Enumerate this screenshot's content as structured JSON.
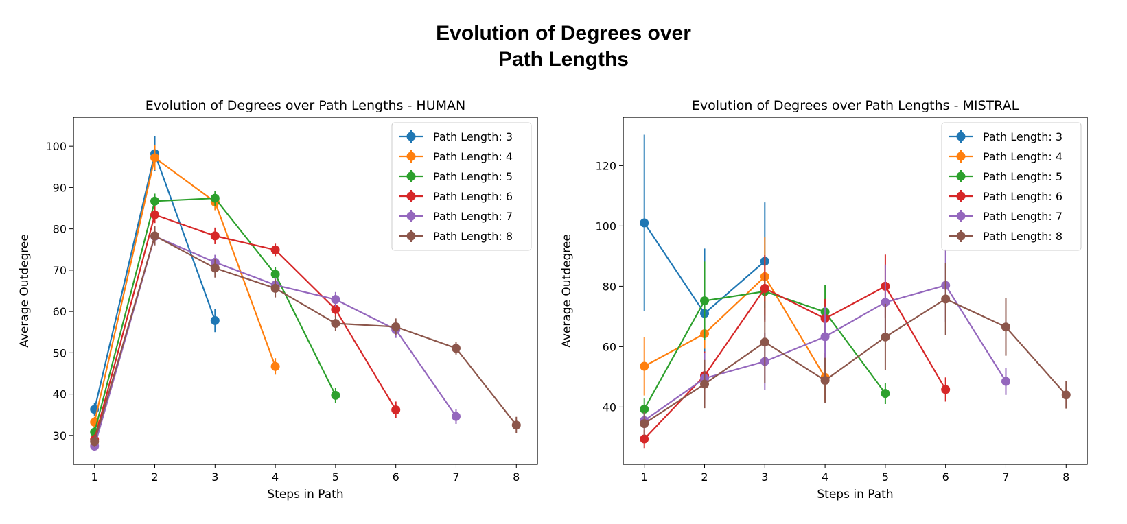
{
  "figure": {
    "title_line1": "Evolution of Degrees over",
    "title_line2": "Path Lengths"
  },
  "colors": [
    "#1f77b4",
    "#ff7f0e",
    "#2ca02c",
    "#d62728",
    "#9467bd",
    "#8c564b"
  ],
  "chart_data": [
    {
      "type": "line",
      "title": "Evolution of Degrees over Path Lengths - HUMAN",
      "xlabel": "Steps in Path",
      "ylabel": "Average Outdegree",
      "xlim": [
        0.65,
        8.35
      ],
      "ylim": [
        23,
        107
      ],
      "xticks": [
        1,
        2,
        3,
        4,
        5,
        6,
        7,
        8
      ],
      "yticks": [
        30,
        40,
        50,
        60,
        70,
        80,
        90,
        100
      ],
      "legend": "top-right",
      "grid": false,
      "series": [
        {
          "name": "Path Length: 3",
          "x": [
            1,
            2,
            3
          ],
          "y": [
            36.3,
            98.2,
            57.8
          ],
          "err": [
            1.5,
            4.2,
            2.8
          ]
        },
        {
          "name": "Path Length: 4",
          "x": [
            1,
            2,
            3,
            4
          ],
          "y": [
            33.2,
            97.2,
            86.5,
            46.7
          ],
          "err": [
            1.3,
            3.0,
            2.0,
            2.0
          ]
        },
        {
          "name": "Path Length: 5",
          "x": [
            1,
            2,
            3,
            4,
            5
          ],
          "y": [
            30.8,
            86.7,
            87.4,
            69.0,
            39.7
          ],
          "err": [
            1.2,
            1.8,
            1.8,
            1.8,
            1.8
          ]
        },
        {
          "name": "Path Length: 6",
          "x": [
            1,
            2,
            3,
            4,
            5,
            6
          ],
          "y": [
            29.0,
            83.4,
            78.3,
            74.9,
            60.5,
            36.2
          ],
          "err": [
            1.2,
            2.0,
            2.0,
            1.5,
            1.8,
            2.0
          ]
        },
        {
          "name": "Path Length: 7",
          "x": [
            1,
            2,
            3,
            4,
            5,
            6,
            7
          ],
          "y": [
            27.4,
            78.2,
            71.9,
            66.4,
            62.9,
            55.6,
            34.6
          ],
          "err": [
            1.2,
            2.0,
            1.8,
            1.8,
            1.8,
            2.0,
            1.8
          ]
        },
        {
          "name": "Path Length: 8",
          "x": [
            1,
            2,
            3,
            4,
            5,
            6,
            7,
            8
          ],
          "y": [
            28.5,
            78.3,
            70.5,
            65.6,
            57.1,
            56.3,
            51.1,
            32.5
          ],
          "err": [
            1.3,
            2.3,
            2.3,
            2.2,
            1.8,
            2.0,
            1.5,
            2.0
          ]
        }
      ]
    },
    {
      "type": "line",
      "title": "Evolution of Degrees over Path Lengths - MISTRAL",
      "xlabel": "Steps in Path",
      "ylabel": "Average Outdegree",
      "xlim": [
        0.65,
        8.35
      ],
      "ylim": [
        21,
        136
      ],
      "xticks": [
        1,
        2,
        3,
        4,
        5,
        6,
        7,
        8
      ],
      "yticks": [
        40,
        60,
        80,
        100,
        120
      ],
      "legend": "top-right",
      "grid": false,
      "series": [
        {
          "name": "Path Length: 3",
          "x": [
            1,
            2,
            3
          ],
          "y": [
            101.0,
            71.0,
            88.3
          ],
          "err": [
            29.2,
            21.5,
            19.5
          ]
        },
        {
          "name": "Path Length: 4",
          "x": [
            1,
            2,
            3,
            4
          ],
          "y": [
            53.5,
            64.3,
            83.2,
            49.8
          ],
          "err": [
            9.7,
            5.0,
            13.0,
            8.0
          ]
        },
        {
          "name": "Path Length: 5",
          "x": [
            1,
            2,
            3,
            4,
            5
          ],
          "y": [
            39.3,
            75.2,
            78.3,
            71.5,
            44.5
          ],
          "err": [
            3.5,
            13.0,
            5.5,
            9.0,
            3.5
          ]
        },
        {
          "name": "Path Length: 6",
          "x": [
            1,
            2,
            3,
            4,
            5,
            6
          ],
          "y": [
            29.4,
            50.4,
            79.3,
            69.3,
            80.0,
            45.8
          ],
          "err": [
            3.0,
            8.0,
            11.0,
            6.5,
            10.5,
            4.0
          ]
        },
        {
          "name": "Path Length: 7",
          "x": [
            1,
            2,
            3,
            4,
            5,
            6,
            7
          ],
          "y": [
            35.5,
            49.5,
            55.1,
            63.3,
            74.7,
            80.3,
            48.5
          ],
          "err": [
            3.0,
            8.5,
            9.5,
            10.0,
            12.5,
            12.0,
            4.5
          ]
        },
        {
          "name": "Path Length: 8",
          "x": [
            1,
            2,
            3,
            4,
            5,
            6,
            7,
            8
          ],
          "y": [
            34.5,
            47.6,
            61.5,
            48.8,
            63.2,
            75.8,
            66.5,
            44.0
          ],
          "err": [
            4.0,
            8.0,
            13.5,
            7.5,
            11.0,
            12.0,
            9.5,
            4.5
          ]
        }
      ]
    }
  ]
}
